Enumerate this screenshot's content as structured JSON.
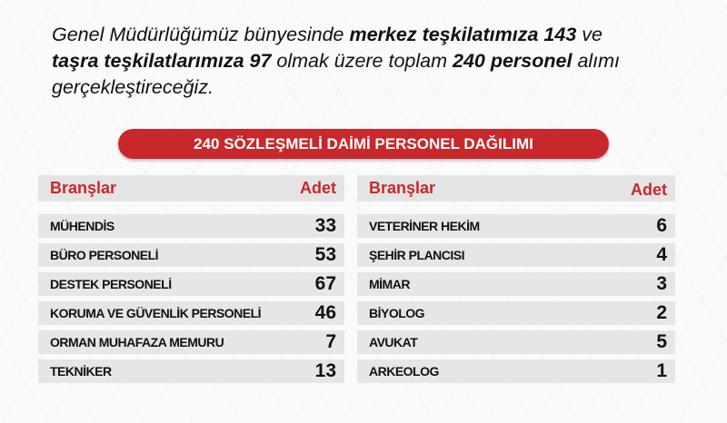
{
  "intro": {
    "p1": "Genel Müdürlüğümüz bünyesinde  ",
    "b1": "merkez teşkilatımıza 143",
    "p2": " ve ",
    "b2": "taşra teşkilatlarımıza 97",
    "p3": " olmak üzere toplam ",
    "b3": "240 personel",
    "p4": " alımı gerçekleştireceğiz."
  },
  "title": "240 SÖZLEŞMELİ DAİMİ PERSONEL DAĞILIMI",
  "colors": {
    "accent": "#c8282b",
    "row_bg": "#e6e6e6"
  },
  "left_table": {
    "header": {
      "branch": "Branşlar",
      "count": "Adet"
    },
    "rows": [
      {
        "branch": "MÜHENDİS",
        "count": "33"
      },
      {
        "branch": "BÜRO PERSONELİ",
        "count": "53"
      },
      {
        "branch": "DESTEK PERSONELİ",
        "count": "67"
      },
      {
        "branch": "KORUMA VE GÜVENLİK PERSONELİ",
        "count": "46"
      },
      {
        "branch": "ORMAN MUHAFAZA MEMURU",
        "count": "7"
      },
      {
        "branch": "TEKNİKER",
        "count": "13"
      }
    ]
  },
  "right_table": {
    "header": {
      "branch": "Branşlar",
      "count": "Adet"
    },
    "rows": [
      {
        "branch": "VETERİNER HEKİM",
        "count": "6"
      },
      {
        "branch": "ŞEHİR PLANCISI",
        "count": "4"
      },
      {
        "branch": "MİMAR",
        "count": "3"
      },
      {
        "branch": "BİYOLOG",
        "count": "2"
      },
      {
        "branch": "AVUKAT",
        "count": "5"
      },
      {
        "branch": "ARKEOLOG",
        "count": "1"
      }
    ]
  }
}
